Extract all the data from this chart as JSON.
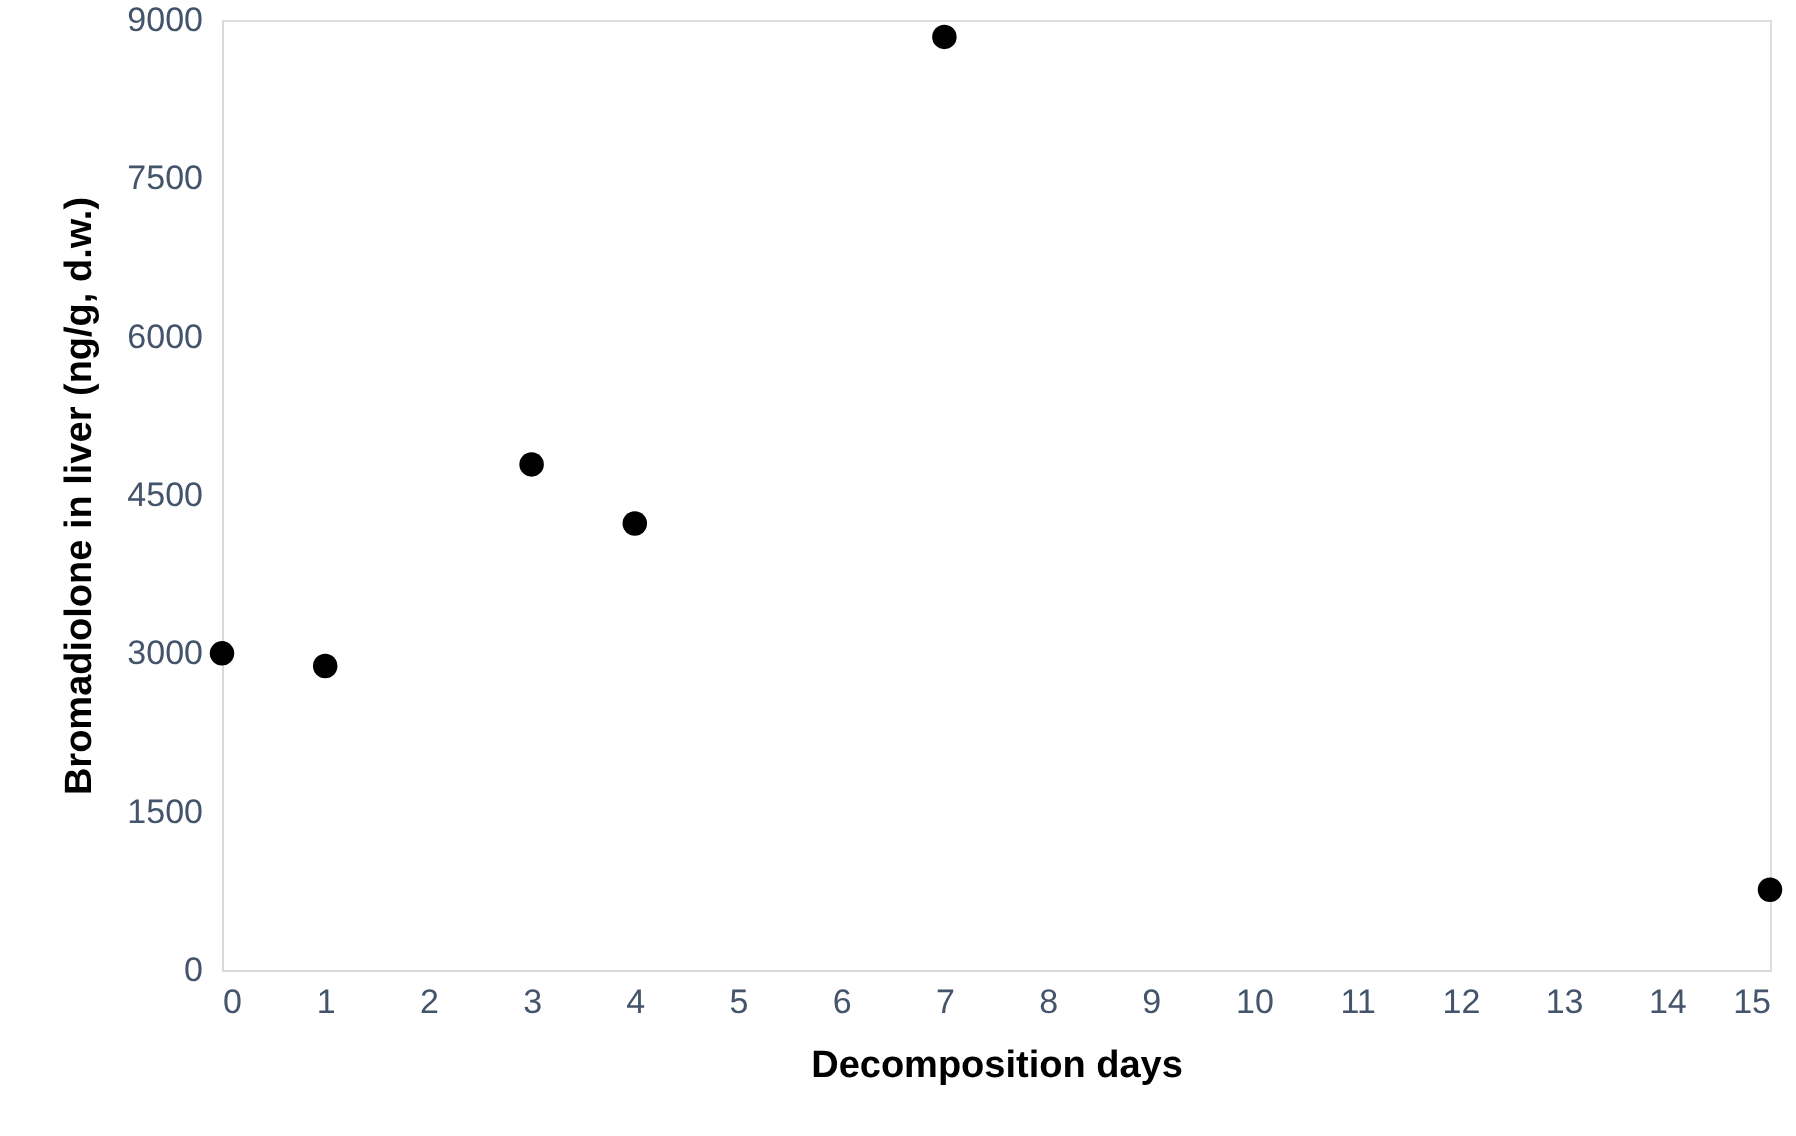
{
  "chart_data": {
    "type": "scatter",
    "xlabel": "Decomposition days",
    "ylabel": "Bromadiolone in liver (ng/g, d.w.)",
    "x": [
      0,
      1,
      3,
      4,
      7,
      15
    ],
    "series": [
      {
        "color": "#000000",
        "values": [
          3000,
          2880,
          4790,
          4230,
          8840,
          760
        ]
      }
    ],
    "xlim": [
      0,
      15
    ],
    "xticks": [
      0,
      1,
      2,
      3,
      4,
      5,
      6,
      7,
      8,
      9,
      10,
      11,
      12,
      13,
      14,
      15
    ],
    "ylim": [
      0,
      9000
    ],
    "yticks": [
      0,
      1500,
      3000,
      4500,
      6000,
      7500,
      9000
    ],
    "grid": false,
    "legend": false,
    "marker": "circle"
  }
}
